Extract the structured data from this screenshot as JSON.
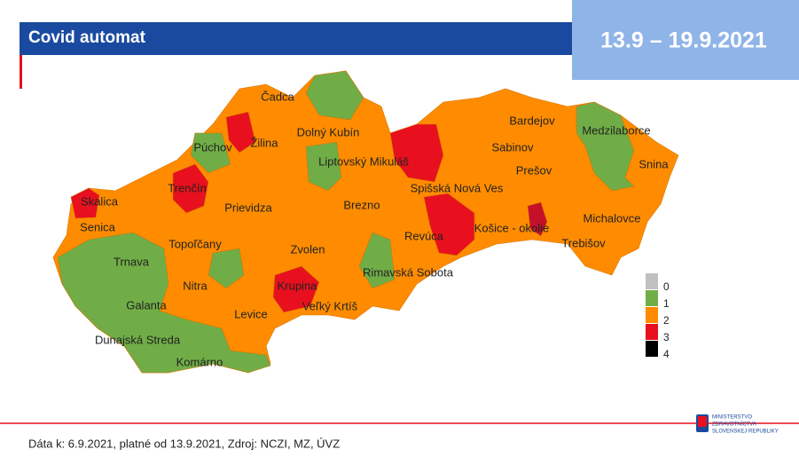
{
  "header": {
    "title": "Covid automat",
    "date": "13.9 – 19.9.2021"
  },
  "districts": [
    "Čadca",
    "Žilina",
    "Púchov",
    "Dolný Kubín",
    "Liptovský Mikuláš",
    "Trenčín",
    "Skalica",
    "Senica",
    "Prievidza",
    "Brezno",
    "Spišská Nová Ves",
    "Bardejov",
    "Sabinov",
    "Prešov",
    "Medzilaborce",
    "Snina",
    "Michalovce",
    "Košice - okolie",
    "Trebišov",
    "Revúca",
    "Topoľčany",
    "Trnava",
    "Zvolen",
    "Rimavská Sobota",
    "Nitra",
    "Krupina",
    "Veľký Krtíš",
    "Galanta",
    "Levice",
    "Dunajská Streda",
    "Komárno"
  ],
  "legend": [
    {
      "label": "0",
      "color": "#c0c0c0"
    },
    {
      "label": "1",
      "color": "#70ad47"
    },
    {
      "label": "2",
      "color": "#ff8c00"
    },
    {
      "label": "3",
      "color": "#e8101e"
    },
    {
      "label": "4",
      "color": "#000000"
    }
  ],
  "footer": "Dáta k: 6.9.2021, platné od 13.9.2021, Zdroj: NCZI, MZ, ÚVZ",
  "logo": [
    "MINISTERSTVO",
    "ZDRAVOTNÍCTVA",
    "SLOVENSKEJ REPUBLIKY"
  ]
}
